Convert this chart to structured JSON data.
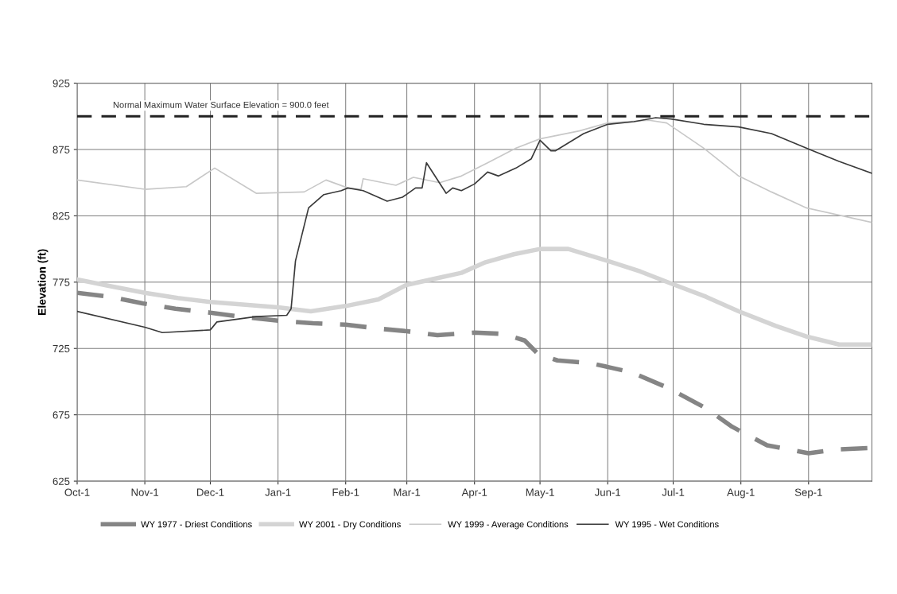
{
  "chart_data": {
    "type": "line",
    "ylabel": "Elevation (ft)",
    "xlim": [
      "2000-10-01",
      "2001-09-30"
    ],
    "ylim": [
      625,
      925
    ],
    "xticks": [
      {
        "value": "2000-10-01",
        "label": "Oct-1"
      },
      {
        "value": "2000-11-01",
        "label": "Nov-1"
      },
      {
        "value": "2000-12-01",
        "label": "Dec-1"
      },
      {
        "value": "2001-01-01",
        "label": "Jan-1"
      },
      {
        "value": "2001-02-01",
        "label": "Feb-1"
      },
      {
        "value": "2001-03-01",
        "label": "Mar-1"
      },
      {
        "value": "2001-04-01",
        "label": "Apr-1"
      },
      {
        "value": "2001-05-01",
        "label": "May-1"
      },
      {
        "value": "2001-06-01",
        "label": "Jun-1"
      },
      {
        "value": "2001-07-01",
        "label": "Jul-1"
      },
      {
        "value": "2001-08-01",
        "label": "Aug-1"
      },
      {
        "value": "2001-09-01",
        "label": "Sep-1"
      }
    ],
    "yticks": [
      625,
      675,
      725,
      775,
      825,
      875,
      925
    ],
    "grid": true,
    "legend": "bottom",
    "marker": "none",
    "ref_lines": [
      {
        "axis": "y",
        "value": 900,
        "label": "Normal Maximum Water Surface Elevation = 900.0 feet",
        "color": "#222222",
        "line_style": "dashed"
      }
    ],
    "series": [
      {
        "name": "WY 1977 - Driest Conditions",
        "color": "#858585",
        "line_style": "dashed",
        "x": [
          "2000-10-01",
          "2000-10-16",
          "2000-10-31",
          "2000-11-15",
          "2000-12-01",
          "2000-12-15",
          "2001-01-01",
          "2001-01-17",
          "2001-02-01",
          "2001-02-16",
          "2001-03-01",
          "2001-03-15",
          "2001-04-01",
          "2001-04-14",
          "2001-04-24",
          "2001-04-30",
          "2001-05-09",
          "2001-05-24",
          "2001-06-12",
          "2001-06-29",
          "2001-07-16",
          "2001-07-28",
          "2001-08-13",
          "2001-09-01",
          "2001-09-15",
          "2001-09-30"
        ],
        "values": [
          767,
          764,
          759,
          755,
          752,
          749,
          746,
          744,
          743,
          740,
          738,
          735,
          737,
          736,
          731,
          721,
          716,
          714,
          707,
          695,
          680,
          666,
          652,
          646,
          649,
          650
        ]
      },
      {
        "name": "WY 2001 - Dry Conditions",
        "color": "#d4d4d4",
        "line_style": "solid",
        "x": [
          "2000-10-01",
          "2000-10-16",
          "2000-11-01",
          "2000-11-16",
          "2000-12-01",
          "2001-01-01",
          "2001-01-16",
          "2001-02-01",
          "2001-02-16",
          "2001-03-01",
          "2001-03-15",
          "2001-03-26",
          "2001-04-06",
          "2001-04-19",
          "2001-05-01",
          "2001-05-14",
          "2001-06-01",
          "2001-06-16",
          "2001-06-30",
          "2001-07-16",
          "2001-07-31",
          "2001-08-17",
          "2001-08-31",
          "2001-09-15",
          "2001-09-30"
        ],
        "values": [
          777,
          772,
          767,
          763,
          760,
          756,
          753,
          757,
          762,
          773,
          778,
          782,
          790,
          796,
          800,
          800,
          791,
          783,
          774,
          764,
          753,
          742,
          734,
          728,
          728
        ]
      },
      {
        "name": "WY 1999 - Average Conditions",
        "color": "#c8c8c8",
        "line_style": "solid",
        "x": [
          "2000-10-01",
          "2000-11-01",
          "2000-11-20",
          "2000-12-03",
          "2000-12-22",
          "2001-01-13",
          "2001-01-23",
          "2001-02-02",
          "2001-02-08",
          "2001-02-09",
          "2001-02-24",
          "2001-03-04",
          "2001-03-16",
          "2001-03-26",
          "2001-04-07",
          "2001-04-20",
          "2001-05-01",
          "2001-05-19",
          "2001-06-01",
          "2001-06-20",
          "2001-06-28",
          "2001-07-15",
          "2001-07-31",
          "2001-08-15",
          "2001-08-31",
          "2001-09-30"
        ],
        "values": [
          852,
          845,
          847,
          861,
          842,
          843,
          852,
          846,
          845,
          853,
          848,
          854,
          850,
          855,
          865,
          876,
          883,
          889,
          895,
          897,
          895,
          876,
          855,
          843,
          831,
          820
        ]
      },
      {
        "name": "WY 1995 - Wet Conditions",
        "color": "#3a3a3a",
        "line_style": "solid",
        "x": [
          "2000-10-01",
          "2000-11-01",
          "2000-11-09",
          "2000-12-01",
          "2000-12-04",
          "2000-12-22",
          "2001-01-05",
          "2001-01-07",
          "2001-01-09",
          "2001-01-15",
          "2001-01-22",
          "2001-01-30",
          "2001-02-02",
          "2001-02-09",
          "2001-02-20",
          "2001-02-27",
          "2001-03-05",
          "2001-03-08",
          "2001-03-10",
          "2001-03-19",
          "2001-03-22",
          "2001-03-26",
          "2001-04-01",
          "2001-04-07",
          "2001-04-12",
          "2001-04-20",
          "2001-04-27",
          "2001-05-01",
          "2001-05-06",
          "2001-05-08",
          "2001-05-21",
          "2001-06-01",
          "2001-06-13",
          "2001-06-23",
          "2001-06-30",
          "2001-07-15",
          "2001-07-31",
          "2001-08-15",
          "2001-08-31",
          "2001-09-15",
          "2001-09-30"
        ],
        "values": [
          753,
          741,
          737,
          739,
          745,
          749,
          750,
          755,
          791,
          831,
          841,
          844,
          846,
          844,
          836,
          839,
          846,
          846,
          865,
          842,
          846,
          844,
          849,
          858,
          855,
          861,
          868,
          882,
          874,
          874,
          887,
          894,
          896,
          899,
          898,
          894,
          892,
          887,
          876,
          866,
          857
        ]
      }
    ]
  }
}
